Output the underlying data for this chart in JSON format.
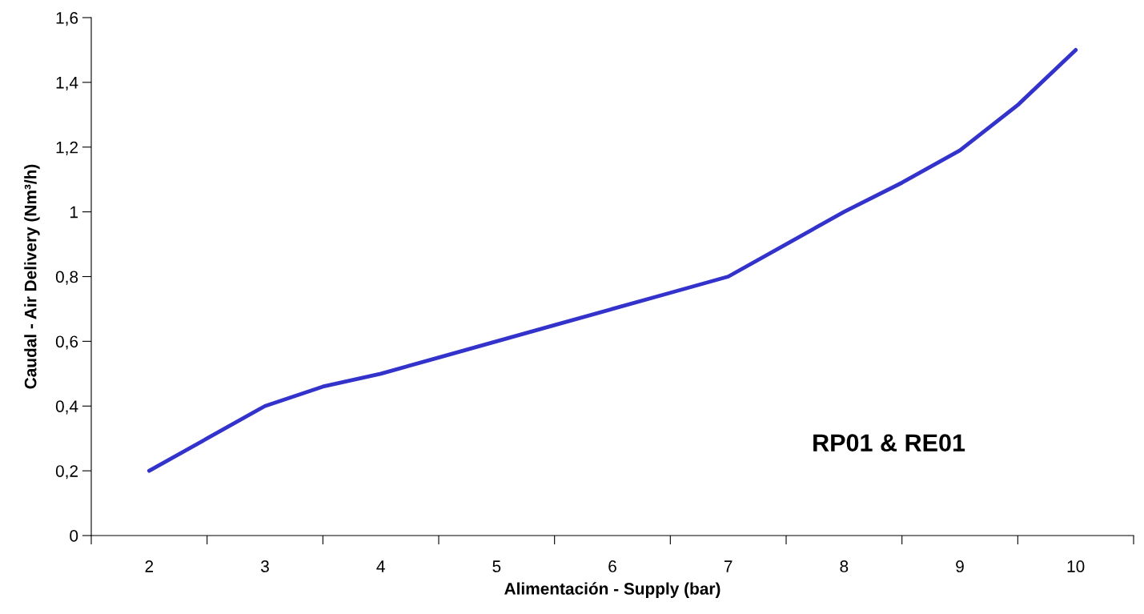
{
  "chart_data": {
    "type": "line",
    "xlabel": "Alimentación - Supply (bar)",
    "ylabel": "Caudal - Air Delivery (Nm³/h)",
    "annotations": [
      "RP01 & RE01"
    ],
    "x": [
      2,
      2.5,
      3,
      3.5,
      4,
      4.5,
      5,
      5.5,
      6,
      6.5,
      7,
      7.5,
      8,
      8.5,
      9,
      9.5,
      10
    ],
    "series": [
      {
        "color": "#3333cc",
        "values": [
          0.2,
          0.3,
          0.4,
          0.46,
          0.5,
          0.55,
          0.6,
          0.65,
          0.7,
          0.75,
          0.8,
          0.9,
          1.0,
          1.09,
          1.19,
          1.33,
          1.5
        ]
      }
    ],
    "xlim": [
      1.5,
      10.5
    ],
    "xticks": [
      {
        "value": 1.5,
        "label": null
      },
      2,
      {
        "value": 2.5,
        "label": null
      },
      3,
      {
        "value": 3.5,
        "label": null
      },
      4,
      {
        "value": 4.5,
        "label": null
      },
      5,
      {
        "value": 5.5,
        "label": null
      },
      6,
      {
        "value": 6.5,
        "label": null
      },
      7,
      {
        "value": 7.5,
        "label": null
      },
      8,
      {
        "value": 8.5,
        "label": null
      },
      9,
      {
        "value": 9.5,
        "label": null
      },
      10,
      {
        "value": 10.5,
        "label": null
      }
    ],
    "ylim": [
      0,
      1.6
    ],
    "yticks": [
      0,
      {
        "value": 0.2,
        "label": "0,2"
      },
      {
        "value": 0.4,
        "label": "0,4"
      },
      {
        "value": 0.6,
        "label": "0,6"
      },
      {
        "value": 0.8,
        "label": "0,8"
      },
      1,
      {
        "value": 1.2,
        "label": "1,2"
      },
      {
        "value": 1.4,
        "label": "1,4"
      },
      {
        "value": 1.6,
        "label": "1,6"
      }
    ],
    "grid": false,
    "marker": "none",
    "line_style": "solid",
    "legend": false
  }
}
